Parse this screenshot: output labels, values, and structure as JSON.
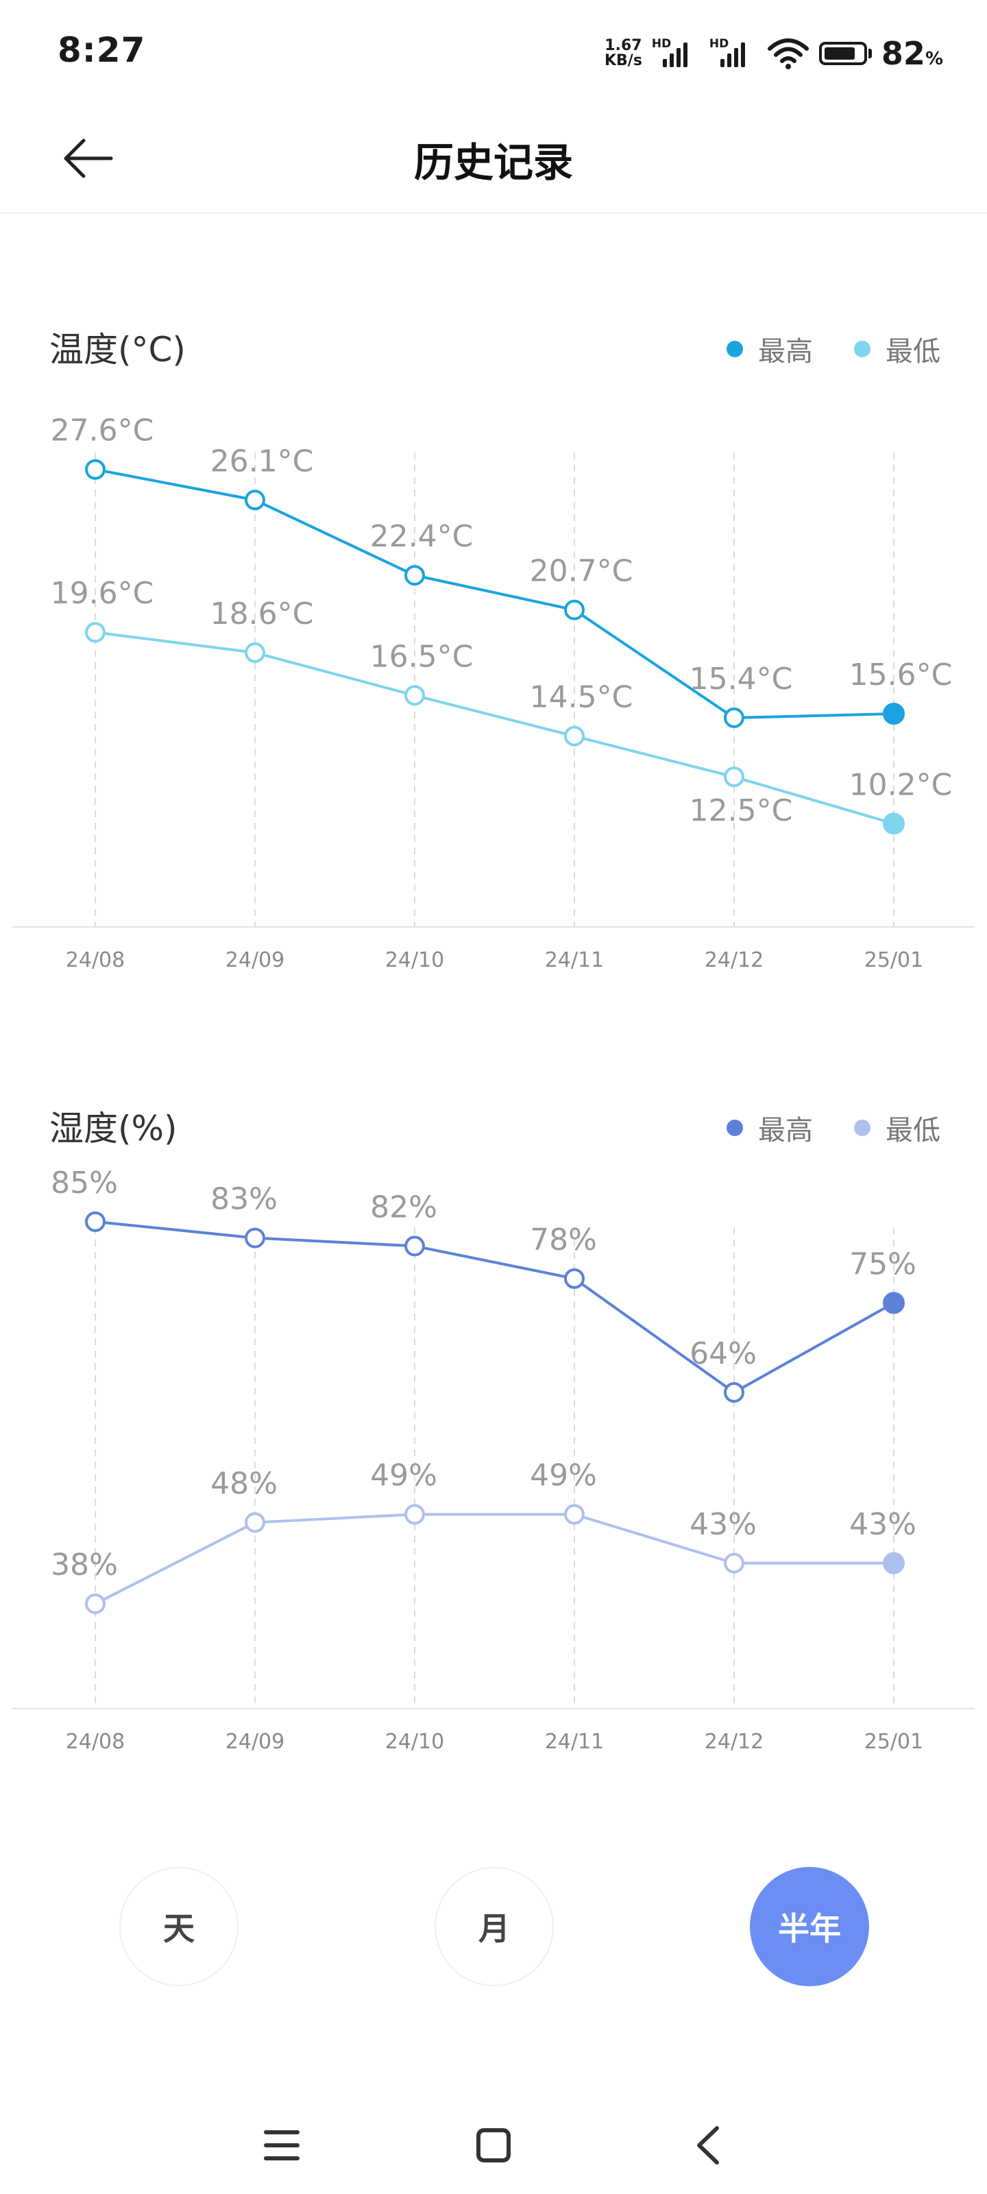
{
  "status_bar": {
    "time": "8:27",
    "net_speed_value": "1.67",
    "net_speed_unit": "KB/s",
    "hd_label": "HD",
    "battery_percent": "82",
    "percent_sign": "%"
  },
  "header": {
    "title": "历史记录",
    "back_icon": "arrow-left-icon"
  },
  "temperature": {
    "title": "温度(°C)",
    "legend_high": "最高",
    "legend_low": "最低",
    "color_high": "#1aa3e0",
    "color_low": "#7fd4ef"
  },
  "humidity": {
    "title": "湿度(%)",
    "legend_high": "最高",
    "legend_low": "最低",
    "color_high": "#5b82d8",
    "color_low": "#aec0ee"
  },
  "period": {
    "day": "天",
    "month": "月",
    "half_year": "半年",
    "selected": "半年",
    "active_color": "#6b8ef5"
  },
  "nav": {
    "menu_icon": "menu-icon",
    "home_icon": "home-icon",
    "back_icon": "back-chevron-icon"
  },
  "chart_data": [
    {
      "type": "line",
      "title": "温度(°C)",
      "categories": [
        "24/08",
        "24/09",
        "24/10",
        "24/11",
        "24/12",
        "25/01"
      ],
      "series": [
        {
          "name": "最高",
          "values": [
            27.6,
            26.1,
            22.4,
            20.7,
            15.4,
            15.6
          ],
          "labels": [
            "27.6°C",
            "26.1°C",
            "22.4°C",
            "20.7°C",
            "15.4°C",
            "15.6°C"
          ],
          "color": "#1aa3e0"
        },
        {
          "name": "最低",
          "values": [
            19.6,
            18.6,
            16.5,
            14.5,
            12.5,
            10.2
          ],
          "labels": [
            "19.6°C",
            "18.6°C",
            "16.5°C",
            "14.5°C",
            "12.5°C",
            "10.2°C"
          ],
          "color": "#7fd4ef"
        }
      ],
      "ylim": [
        6,
        28.5
      ],
      "grid": "vertical-dashed",
      "legend": "top-right"
    },
    {
      "type": "line",
      "title": "湿度(%)",
      "categories": [
        "24/08",
        "24/09",
        "24/10",
        "24/11",
        "24/12",
        "25/01"
      ],
      "series": [
        {
          "name": "最高",
          "values": [
            85,
            83,
            82,
            78,
            64,
            75
          ],
          "labels": [
            "85%",
            "83%",
            "82%",
            "78%",
            "64%",
            "75%"
          ],
          "color": "#5b82d8"
        },
        {
          "name": "最低",
          "values": [
            38,
            48,
            49,
            49,
            43,
            43
          ],
          "labels": [
            "38%",
            "48%",
            "49%",
            "49%",
            "43%",
            "43%"
          ],
          "color": "#aec0ee"
        }
      ],
      "ylim": [
        28.4,
        86
      ],
      "grid": "vertical-dashed",
      "legend": "top-right"
    }
  ]
}
